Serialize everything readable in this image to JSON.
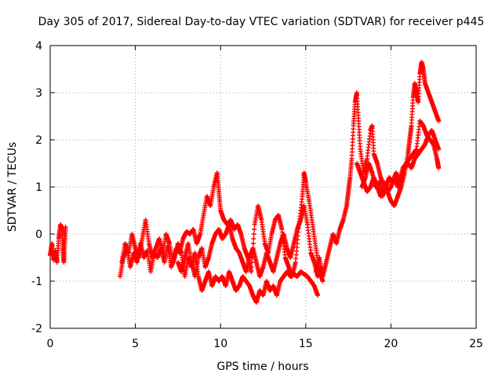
{
  "chart_data": {
    "type": "scatter",
    "title": "Day 305 of 2017, Sidereal Day-to-day VTEC variation (SDTVAR) for receiver p445",
    "xlabel": "GPS time / hours",
    "ylabel": "SDTVAR / TECUs",
    "xlim": [
      0,
      25
    ],
    "ylim": [
      -2,
      4
    ],
    "xticks": [
      "0",
      "5",
      "10",
      "15",
      "20",
      "25"
    ],
    "yticks": [
      "-2",
      "-1",
      "0",
      "1",
      "2",
      "3",
      "4"
    ],
    "grid": true,
    "marker": "+",
    "color": "#ff0000",
    "series": [
      {
        "name": "SDTVAR",
        "segments": [
          [
            [
              0.0,
              -0.45
            ],
            [
              0.1,
              -0.2
            ],
            [
              0.2,
              -0.55
            ],
            [
              0.3,
              -0.35
            ],
            [
              0.4,
              -0.6
            ],
            [
              0.5,
              -0.1
            ],
            [
              0.6,
              0.2
            ],
            [
              0.7,
              0.1
            ],
            [
              0.75,
              -0.3
            ],
            [
              0.8,
              -0.6
            ],
            [
              0.85,
              -0.2
            ],
            [
              0.9,
              0.15
            ]
          ],
          [
            [
              4.1,
              -0.9
            ],
            [
              4.3,
              -0.5
            ],
            [
              4.5,
              -0.3
            ],
            [
              4.7,
              -0.7
            ],
            [
              4.9,
              -0.4
            ],
            [
              5.1,
              -0.6
            ],
            [
              5.3,
              -0.2
            ],
            [
              5.5,
              -0.5
            ],
            [
              5.7,
              -0.35
            ],
            [
              5.9,
              -0.8
            ],
            [
              6.1,
              -0.4
            ],
            [
              6.3,
              -0.5
            ],
            [
              6.5,
              -0.3
            ],
            [
              6.7,
              -0.6
            ],
            [
              6.9,
              -0.25
            ],
            [
              7.1,
              -0.7
            ],
            [
              7.3,
              -0.5
            ],
            [
              7.5,
              -0.2
            ],
            [
              7.7,
              -0.4
            ],
            [
              7.9,
              -0.9
            ],
            [
              8.1,
              -0.5
            ],
            [
              8.3,
              -0.7
            ],
            [
              8.5,
              -0.4
            ],
            [
              8.7,
              -0.9
            ],
            [
              8.9,
              -1.2
            ],
            [
              9.1,
              -1.0
            ],
            [
              9.3,
              -0.8
            ],
            [
              9.5,
              -1.1
            ],
            [
              9.7,
              -0.9
            ],
            [
              9.9,
              -1.0
            ],
            [
              10.1,
              -0.9
            ],
            [
              10.3,
              -1.1
            ],
            [
              10.5,
              -0.8
            ],
            [
              10.7,
              -1.0
            ],
            [
              10.9,
              -1.2
            ],
            [
              11.1,
              -1.1
            ],
            [
              11.3,
              -0.9
            ],
            [
              11.5,
              -1.0
            ],
            [
              11.7,
              -1.1
            ],
            [
              11.9,
              -1.3
            ],
            [
              12.1,
              -1.45
            ],
            [
              12.3,
              -1.2
            ],
            [
              12.5,
              -1.3
            ],
            [
              12.7,
              -1.0
            ],
            [
              12.9,
              -1.2
            ],
            [
              13.1,
              -1.1
            ],
            [
              13.3,
              -1.3
            ],
            [
              13.5,
              -1.0
            ],
            [
              13.7,
              -0.9
            ],
            [
              13.9,
              -0.8
            ],
            [
              14.1,
              -0.9
            ],
            [
              14.3,
              -0.85
            ],
            [
              14.5,
              -0.9
            ],
            [
              14.7,
              -0.8
            ],
            [
              14.9,
              -0.85
            ],
            [
              15.1,
              -0.9
            ],
            [
              15.3,
              -1.0
            ],
            [
              15.5,
              -1.1
            ],
            [
              15.7,
              -1.3
            ]
          ],
          [
            [
              4.2,
              -0.6
            ],
            [
              4.4,
              -0.2
            ],
            [
              4.6,
              -0.4
            ],
            [
              4.8,
              0.0
            ],
            [
              5.0,
              -0.3
            ],
            [
              5.2,
              -0.5
            ],
            [
              5.4,
              -0.1
            ],
            [
              5.6,
              0.3
            ],
            [
              5.8,
              -0.2
            ],
            [
              6.0,
              -0.5
            ],
            [
              6.2,
              -0.3
            ],
            [
              6.4,
              -0.1
            ],
            [
              6.6,
              -0.4
            ],
            [
              6.8,
              0.0
            ],
            [
              7.0,
              -0.2
            ],
            [
              7.2,
              -0.6
            ],
            [
              7.4,
              -0.3
            ],
            [
              7.6,
              -0.4
            ],
            [
              7.8,
              -0.1
            ],
            [
              8.0,
              0.05
            ],
            [
              8.2,
              0.0
            ],
            [
              8.4,
              0.1
            ],
            [
              8.6,
              -0.2
            ],
            [
              8.8,
              0.0
            ],
            [
              9.0,
              0.4
            ],
            [
              9.2,
              0.8
            ],
            [
              9.4,
              0.6
            ],
            [
              9.6,
              1.0
            ],
            [
              9.8,
              1.3
            ],
            [
              9.9,
              0.9
            ],
            [
              10.0,
              0.5
            ],
            [
              10.2,
              0.3
            ],
            [
              10.4,
              0.2
            ],
            [
              10.6,
              0.3
            ],
            [
              10.8,
              0.1
            ],
            [
              11.0,
              0.2
            ],
            [
              11.2,
              0.0
            ],
            [
              11.4,
              -0.3
            ],
            [
              11.6,
              -0.5
            ],
            [
              11.8,
              -0.8
            ],
            [
              12.0,
              0.2
            ],
            [
              12.2,
              0.6
            ],
            [
              12.4,
              0.3
            ],
            [
              12.6,
              -0.2
            ],
            [
              12.8,
              -0.4
            ],
            [
              13.0,
              0.0
            ],
            [
              13.2,
              0.3
            ],
            [
              13.4,
              0.4
            ],
            [
              13.6,
              0.1
            ],
            [
              13.8,
              -0.5
            ],
            [
              14.0,
              -0.7
            ],
            [
              14.2,
              -0.9
            ],
            [
              14.4,
              -0.6
            ],
            [
              14.6,
              0.2
            ],
            [
              14.8,
              0.8
            ],
            [
              14.9,
              1.3
            ],
            [
              15.0,
              1.1
            ],
            [
              15.2,
              0.7
            ],
            [
              15.4,
              0.2
            ],
            [
              15.6,
              -0.3
            ],
            [
              15.8,
              -0.8
            ],
            [
              16.0,
              -1.0
            ]
          ],
          [
            [
              7.5,
              -0.6
            ],
            [
              7.7,
              -0.8
            ],
            [
              7.9,
              -0.5
            ],
            [
              8.1,
              -0.2
            ],
            [
              8.3,
              -0.6
            ],
            [
              8.5,
              -0.9
            ],
            [
              8.7,
              -0.5
            ],
            [
              8.9,
              -0.3
            ],
            [
              9.1,
              -0.7
            ],
            [
              9.3,
              -0.5
            ],
            [
              9.5,
              -0.2
            ],
            [
              9.7,
              0.0
            ],
            [
              9.9,
              0.1
            ],
            [
              10.1,
              -0.1
            ],
            [
              10.3,
              0.0
            ],
            [
              10.5,
              0.2
            ],
            [
              10.7,
              -0.1
            ],
            [
              10.9,
              -0.3
            ],
            [
              11.1,
              -0.4
            ],
            [
              11.3,
              -0.6
            ],
            [
              11.5,
              -0.8
            ],
            [
              11.7,
              -0.5
            ],
            [
              11.9,
              -0.3
            ],
            [
              12.1,
              -0.6
            ],
            [
              12.3,
              -0.9
            ],
            [
              12.5,
              -0.7
            ],
            [
              12.7,
              -0.4
            ],
            [
              12.9,
              -0.6
            ],
            [
              13.1,
              -0.8
            ],
            [
              13.3,
              -0.5
            ],
            [
              13.5,
              -0.2
            ],
            [
              13.7,
              0.0
            ],
            [
              13.9,
              -0.3
            ],
            [
              14.1,
              -0.5
            ],
            [
              14.3,
              -0.2
            ],
            [
              14.5,
              0.1
            ],
            [
              14.7,
              0.3
            ],
            [
              14.9,
              0.6
            ],
            [
              15.1,
              0.2
            ],
            [
              15.3,
              -0.4
            ],
            [
              15.5,
              -0.6
            ],
            [
              15.7,
              -0.9
            ],
            [
              15.9,
              -0.7
            ]
          ],
          [
            [
              15.6,
              -0.8
            ],
            [
              15.8,
              -0.5
            ],
            [
              16.0,
              -0.9
            ],
            [
              16.2,
              -0.6
            ],
            [
              16.4,
              -0.3
            ],
            [
              16.6,
              0.0
            ],
            [
              16.8,
              -0.2
            ],
            [
              17.0,
              0.1
            ],
            [
              17.2,
              0.3
            ],
            [
              17.4,
              0.6
            ],
            [
              17.5,
              0.9
            ],
            [
              17.6,
              1.2
            ],
            [
              17.7,
              1.6
            ],
            [
              17.8,
              2.3
            ],
            [
              17.9,
              2.8
            ],
            [
              18.0,
              3.0
            ],
            [
              18.1,
              2.4
            ],
            [
              18.2,
              1.8
            ],
            [
              18.4,
              1.3
            ],
            [
              18.6,
              1.6
            ],
            [
              18.8,
              2.2
            ],
            [
              18.9,
              2.3
            ],
            [
              19.0,
              1.7
            ],
            [
              19.2,
              1.5
            ],
            [
              19.4,
              1.2
            ],
            [
              19.6,
              1.0
            ],
            [
              19.8,
              0.9
            ],
            [
              20.0,
              0.7
            ],
            [
              20.2,
              0.6
            ],
            [
              20.4,
              0.8
            ],
            [
              20.6,
              1.0
            ],
            [
              20.8,
              1.3
            ],
            [
              21.0,
              1.7
            ],
            [
              21.1,
              2.0
            ],
            [
              21.2,
              2.3
            ],
            [
              21.3,
              2.9
            ],
            [
              21.4,
              3.2
            ],
            [
              21.5,
              3.0
            ],
            [
              21.6,
              2.8
            ],
            [
              21.7,
              3.4
            ],
            [
              21.8,
              3.65
            ],
            [
              21.9,
              3.5
            ],
            [
              22.0,
              3.2
            ],
            [
              22.2,
              3.0
            ],
            [
              22.4,
              2.8
            ],
            [
              22.6,
              2.6
            ],
            [
              22.8,
              2.4
            ]
          ],
          [
            [
              18.3,
              1.0
            ],
            [
              18.5,
              1.2
            ],
            [
              18.7,
              1.5
            ],
            [
              18.9,
              1.3
            ],
            [
              19.1,
              1.0
            ],
            [
              19.3,
              1.1
            ],
            [
              19.5,
              0.8
            ],
            [
              19.7,
              1.0
            ],
            [
              19.9,
              1.2
            ],
            [
              20.1,
              1.1
            ],
            [
              20.3,
              1.3
            ],
            [
              20.5,
              1.1
            ],
            [
              20.7,
              1.4
            ],
            [
              20.9,
              1.5
            ],
            [
              21.1,
              1.6
            ],
            [
              21.3,
              1.7
            ],
            [
              21.5,
              1.8
            ],
            [
              21.7,
              2.4
            ],
            [
              21.9,
              2.3
            ],
            [
              22.1,
              2.1
            ],
            [
              22.3,
              2.0
            ],
            [
              22.5,
              1.9
            ],
            [
              22.7,
              1.6
            ],
            [
              22.8,
              1.4
            ]
          ],
          [
            [
              18.0,
              1.5
            ],
            [
              18.2,
              1.3
            ],
            [
              18.4,
              1.1
            ],
            [
              18.6,
              0.9
            ],
            [
              18.8,
              1.0
            ],
            [
              19.0,
              1.2
            ],
            [
              19.2,
              1.0
            ],
            [
              19.4,
              0.8
            ],
            [
              19.6,
              1.1
            ],
            [
              19.8,
              0.9
            ],
            [
              20.0,
              1.0
            ],
            [
              20.2,
              1.2
            ],
            [
              20.4,
              1.0
            ],
            [
              20.6,
              1.2
            ],
            [
              20.8,
              1.4
            ],
            [
              21.0,
              1.5
            ],
            [
              21.2,
              1.4
            ],
            [
              21.4,
              1.6
            ],
            [
              21.6,
              1.7
            ],
            [
              21.8,
              1.8
            ],
            [
              22.0,
              1.9
            ],
            [
              22.2,
              2.1
            ],
            [
              22.4,
              2.2
            ],
            [
              22.6,
              2.0
            ],
            [
              22.8,
              1.8
            ]
          ]
        ]
      }
    ]
  }
}
